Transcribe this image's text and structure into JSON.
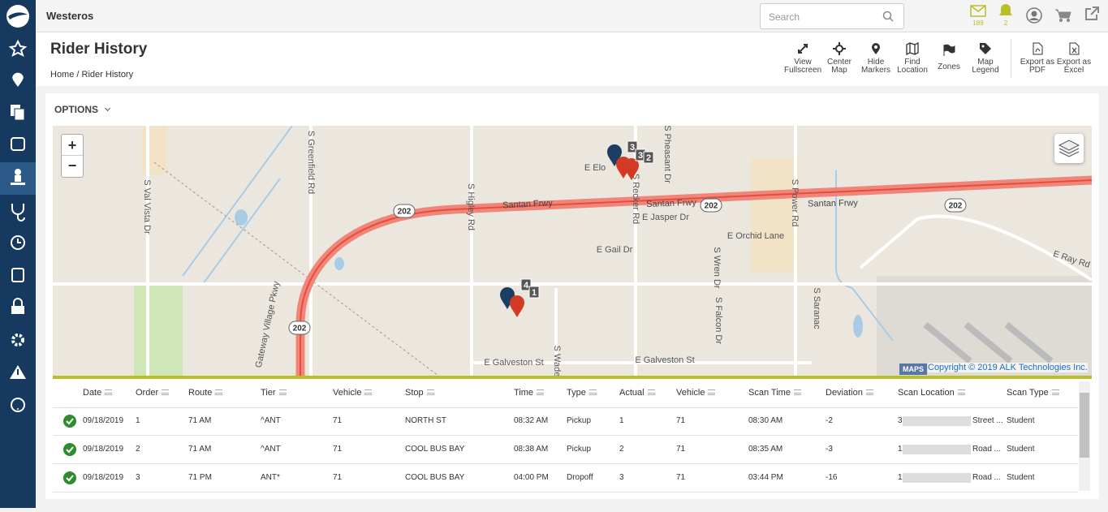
{
  "app_name": "Westeros",
  "search_placeholder": "Search",
  "notifications": {
    "messages": "189",
    "alerts": "2"
  },
  "page_title": "Rider History",
  "breadcrumb": {
    "items": [
      "Home",
      "Rider History"
    ],
    "separator": "/"
  },
  "toolbar": [
    "View Fullscreen",
    "Center Map",
    "Hide Markers",
    "Find Location",
    "Zones",
    "Map Legend",
    "Export as PDF",
    "Export as Excel"
  ],
  "options_label": "OPTIONS",
  "map": {
    "zoom_in": "+",
    "zoom_out": "−",
    "street_labels": [
      "S Val Vista Dr",
      "S Greenfield Rd",
      "S Higley Rd",
      "Santan Frwy",
      "Santan Frwy",
      "Santan Frwy",
      "S Recker Rd",
      "S Pheasant Dr",
      "E Elo",
      "E Jasper Dr",
      "E Orchid Lane",
      "E Gail Dr",
      "S Power Rd",
      "E Ray Rd",
      "S Wren Dr",
      "S Falcon Dr",
      "S Saranac",
      "Gateway Village Pkwy",
      "E Galveston St",
      "E Galveston St",
      "S Wade"
    ],
    "shields": [
      "202",
      "202",
      "202",
      "202"
    ],
    "marker_counts": [
      "3",
      "3",
      "2",
      "4",
      "1"
    ],
    "brand": "MAPS",
    "copyright": "Copyright © 2019 ALK Technologies Inc."
  },
  "table": {
    "columns": [
      "Date",
      "Order",
      "Route",
      "Tier",
      "Vehicle",
      "Stop",
      "Time",
      "Type",
      "Actual",
      "Vehicle",
      "Scan Time",
      "Deviation",
      "Scan Location",
      "Scan Type"
    ],
    "rows": [
      [
        "09/18/2019",
        "1",
        "71 AM",
        "^ANT",
        "71",
        "NORTH ST",
        "08:32 AM",
        "Pickup",
        "1",
        "71",
        "08:30 AM",
        "-2",
        {
          "start": "3",
          "end": "Street ..."
        },
        "Student"
      ],
      [
        "09/18/2019",
        "2",
        "71 AM",
        "^ANT",
        "71",
        "COOL BUS BAY",
        "08:38 AM",
        "Pickup",
        "2",
        "71",
        "08:35 AM",
        "-3",
        {
          "start": "1",
          "end": "Road ..."
        },
        "Student"
      ],
      [
        "09/18/2019",
        "3",
        "71 PM",
        "ANT*",
        "71",
        "COOL BUS BAY",
        "04:00 PM",
        "Dropoff",
        "3",
        "71",
        "03:44 PM",
        "-16",
        {
          "start": "1",
          "end": "Road ..."
        },
        "Student"
      ]
    ]
  }
}
